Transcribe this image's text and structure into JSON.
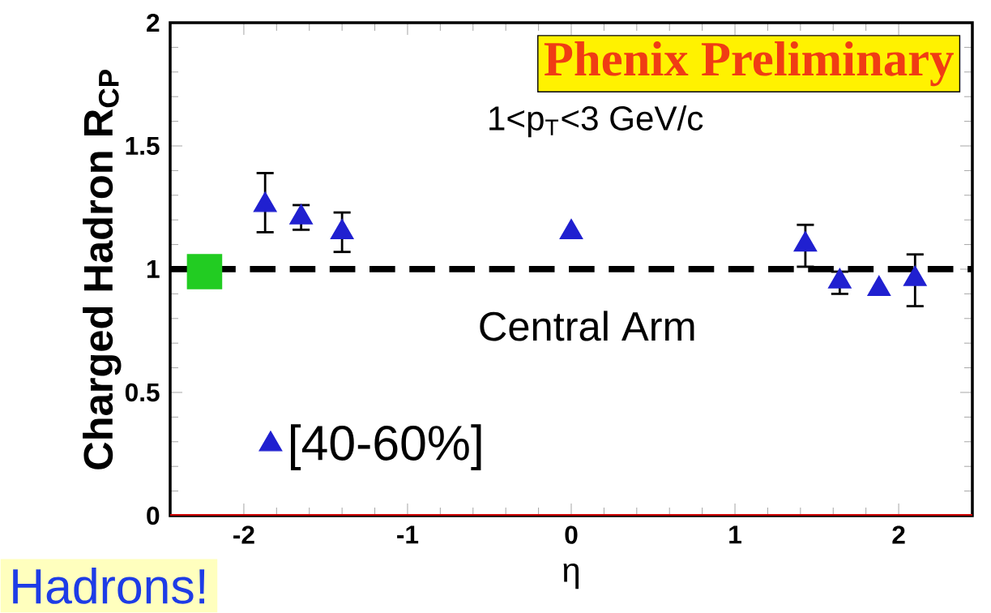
{
  "chart_data": {
    "type": "scatter",
    "xlabel": "η",
    "ylabel": "Charged Hadron R$_{CP}$",
    "xlim": [
      -2.45,
      2.45
    ],
    "ylim": [
      0,
      2
    ],
    "xticks": [
      -2,
      -1,
      0,
      1,
      2
    ],
    "yticks": [
      0,
      0.5,
      1,
      1.5,
      2
    ],
    "legend": "bottom left",
    "series": [
      {
        "name": "[40-60%]",
        "color": "#2020d0",
        "marker": "triangle",
        "x": [
          -1.87,
          -1.65,
          -1.4,
          1.43,
          1.64,
          1.88,
          2.1
        ],
        "values": [
          1.26,
          1.21,
          1.15,
          1.1,
          0.95,
          0.92,
          0.96
        ],
        "errors": [
          [
            1.15,
            1.39
          ],
          [
            1.16,
            1.26
          ],
          [
            1.07,
            1.23
          ],
          [
            1.01,
            1.18
          ],
          [
            0.9,
            0.99
          ],
          null,
          [
            0.85,
            1.06
          ]
        ]
      },
      {
        "color": "#2020d0",
        "marker": "triangle",
        "x": [
          0
        ],
        "values": [
          1.15
        ]
      },
      {
        "color": "#22cc22",
        "marker": "square",
        "x": [
          -2.24
        ],
        "values": [
          0.99
        ]
      }
    ],
    "ref_lines": [
      {
        "axis": "y",
        "value": 1,
        "line_style": "dashed",
        "color": "#000000"
      }
    ],
    "annotations": [
      "Phenix Preliminary",
      "1<p$_{T}$<3 GeV/c",
      "Central Arm",
      "Hadrons!"
    ]
  }
}
